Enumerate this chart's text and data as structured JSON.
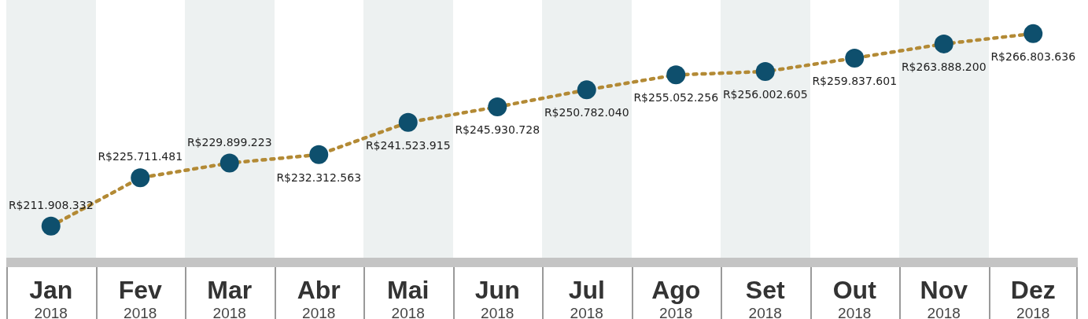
{
  "chart_data": {
    "type": "line",
    "categories": [
      "Jan 2018",
      "Fev 2018",
      "Mar 2018",
      "Abr 2018",
      "Mai 2018",
      "Jun 2018",
      "Jul 2018",
      "Ago 2018",
      "Set 2018",
      "Out 2018",
      "Nov 2018",
      "Dez 2018"
    ],
    "series": [
      {
        "color": "#b38a35",
        "colors": [
          "#0e4f6d",
          "#0e4f6d",
          "#0e4f6d",
          "#0e4f6d",
          "#0e4f6d",
          "#0e4f6d",
          "#0e4f6d",
          "#0e4f6d",
          "#0e4f6d",
          "#0e4f6d",
          "#0e4f6d",
          "#0e4f6d"
        ],
        "values": [
          211908332,
          225711481,
          229899223,
          232312563,
          241523915,
          245930728,
          250782040,
          255052256,
          256002605,
          259837601,
          263888200,
          266803636
        ],
        "value_labels": [
          "R$211.908.332",
          "R$225.711.481",
          "R$229.899.223",
          "R$232.312.563",
          "R$241.523.915",
          "R$245.930.728",
          "R$250.782.040",
          "R$255.052.256",
          "R$256.002.605",
          "R$259.837.601",
          "R$263.888.200",
          "R$266.803.636"
        ]
      }
    ],
    "marker": "circle",
    "line_style": "dotted"
  }
}
